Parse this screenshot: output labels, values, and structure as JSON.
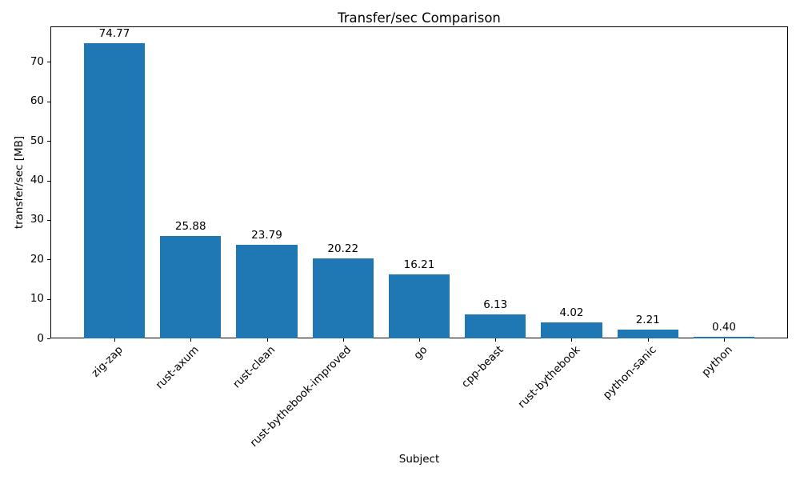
{
  "chart_data": {
    "type": "bar",
    "title": "Transfer/sec Comparison",
    "xlabel": "Subject",
    "ylabel": "transfer/sec [MB]",
    "categories": [
      "zig-zap",
      "rust-axum",
      "rust-clean",
      "rust-bythebook-improved",
      "go",
      "cpp-beast",
      "rust-bythebook",
      "python-sanic",
      "python"
    ],
    "values": [
      74.77,
      25.88,
      23.79,
      20.22,
      16.21,
      6.13,
      4.02,
      2.21,
      0.4
    ],
    "value_labels": [
      "74.77",
      "25.88",
      "23.79",
      "20.22",
      "16.21",
      "6.13",
      "4.02",
      "2.21",
      "0.40"
    ],
    "yticks": [
      0,
      10,
      20,
      30,
      40,
      50,
      60,
      70
    ],
    "ylim": [
      0,
      79
    ],
    "bar_color": "#1f77b4",
    "background_color": "#ffffff",
    "text_color": "#000000",
    "grid": false,
    "x_tick_rotation_deg": 45
  }
}
